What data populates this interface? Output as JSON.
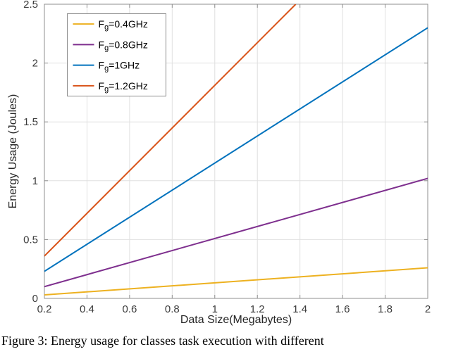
{
  "figure": {
    "caption": "Figure 3: Energy usage for classes task execution with different"
  },
  "axis": {
    "box_color": "#8f8f8f",
    "grid_color": "#e0e0e0",
    "tick_label_color": "#3b3b3b",
    "legend_border_color": "#8c8c8c"
  },
  "chart_data": {
    "type": "line",
    "title": "",
    "xlabel": "Data Size(Megabytes)",
    "ylabel": "Energy Usage (Joules)",
    "xlim": [
      0.2,
      2
    ],
    "ylim": [
      0,
      2.5
    ],
    "xticks": [
      0.2,
      0.4,
      0.6,
      0.8,
      1,
      1.2,
      1.4,
      1.6,
      1.8,
      2
    ],
    "yticks": [
      0,
      0.5,
      1,
      1.5,
      2,
      2.5
    ],
    "grid": true,
    "legend_position": "top-left",
    "series": [
      {
        "name": "F_g=0.4GHz",
        "label_main": "F",
        "label_sub": "g",
        "label_rest": "=0.4GHz",
        "color": "#EDB120",
        "x": [
          0.2,
          2
        ],
        "y": [
          0.03,
          0.26
        ]
      },
      {
        "name": "F_g=0.8GHz",
        "label_main": "F",
        "label_sub": "g",
        "label_rest": "=0.8GHz",
        "color": "#7E2F8E",
        "x": [
          0.2,
          2
        ],
        "y": [
          0.1,
          1.02
        ]
      },
      {
        "name": "F_g=1GHz",
        "label_main": "F",
        "label_sub": "g",
        "label_rest": "=1GHz",
        "color": "#0072BD",
        "x": [
          0.2,
          2
        ],
        "y": [
          0.23,
          2.3
        ]
      },
      {
        "name": "F_g=1.2GHz",
        "label_main": "F",
        "label_sub": "g",
        "label_rest": "=1.2GHz",
        "color": "#D95319",
        "x": [
          0.2,
          1.38
        ],
        "y": [
          0.36,
          2.5
        ]
      }
    ]
  }
}
